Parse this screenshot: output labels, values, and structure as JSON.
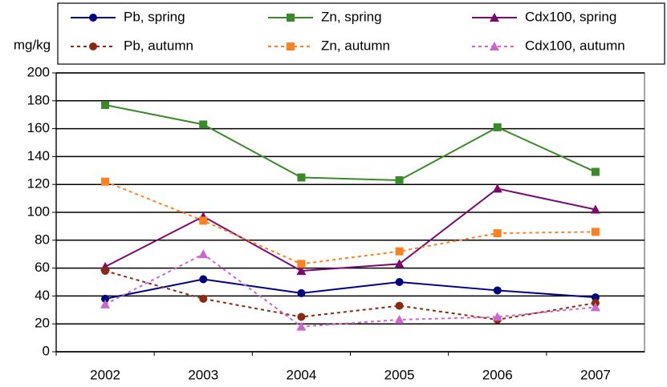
{
  "chart_data": {
    "type": "line",
    "y_label": "mg/kg",
    "categories": [
      "2002",
      "2003",
      "2004",
      "2005",
      "2006",
      "2007"
    ],
    "ylim": [
      0,
      200
    ],
    "yticks": [
      0,
      20,
      40,
      60,
      80,
      100,
      120,
      140,
      160,
      180,
      200
    ],
    "grid": true,
    "legend": "top",
    "series": [
      {
        "name": "Pb, spring",
        "color": "#000080",
        "marker": "circle",
        "dashed": false,
        "values": [
          38,
          52,
          42,
          50,
          44,
          39
        ]
      },
      {
        "name": "Zn, spring",
        "color": "#3a8a2a",
        "marker": "square",
        "dashed": false,
        "values": [
          177,
          163,
          125,
          123,
          161,
          129
        ]
      },
      {
        "name": "Cdx100, spring",
        "color": "#7a0a70",
        "marker": "triangle",
        "dashed": false,
        "values": [
          61,
          97,
          58,
          63,
          117,
          102
        ]
      },
      {
        "name": "Pb, autumn",
        "color": "#8b2a10",
        "marker": "circle",
        "dashed": true,
        "values": [
          58,
          38,
          25,
          33,
          23,
          35
        ]
      },
      {
        "name": "Zn, autumn",
        "color": "#ff8020",
        "marker": "square",
        "dashed": true,
        "values": [
          122,
          94,
          63,
          72,
          85,
          86
        ]
      },
      {
        "name": "Cdx100, autumn",
        "color": "#cc66cc",
        "marker": "triangle",
        "dashed": true,
        "values": [
          34,
          70,
          18,
          23,
          25,
          32
        ]
      }
    ]
  }
}
